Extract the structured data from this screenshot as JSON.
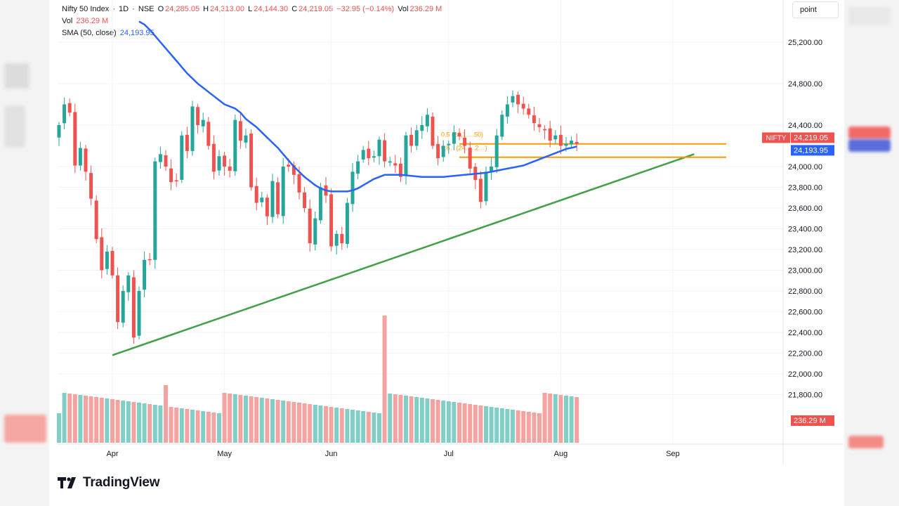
{
  "header": {
    "symbol": "Nifty 50 Index",
    "interval": "1D",
    "exchange": "NSE",
    "open_label": "O",
    "open": "24,285.05",
    "high_label": "H",
    "high": "24,313.00",
    "low_label": "L",
    "low": "24,144.30",
    "close_label": "C",
    "close": "24,219.05",
    "change": "−32.95 (−0.14%)",
    "vol_label": "Vol",
    "vol": "236.29 M",
    "vol_row_label": "Vol",
    "vol_row_value": "236.29 M",
    "sma_label": "SMA (50, close)",
    "sma_value": "24,193.95"
  },
  "toolbar": {
    "point_label": "point"
  },
  "branding": {
    "name": "TradingView"
  },
  "colors": {
    "up": "#26a69a",
    "down": "#ef5350",
    "sma": "#2962ff",
    "trend": "#43a047",
    "fib": "#ff9800",
    "vol_up": "#7fcfc6",
    "vol_down": "#f5a3a0"
  },
  "chart_data": {
    "type": "candlestick",
    "x_labels": [
      "Apr",
      "May",
      "Jun",
      "Jul",
      "Aug",
      "Sep"
    ],
    "x_label_index": [
      10,
      31,
      51,
      73,
      94,
      115
    ],
    "y_ticks": [
      "25,200.00",
      "24,800.00",
      "24,400.00",
      "24,000.00",
      "23,800.00",
      "23,600.00",
      "23,400.00",
      "23,200.00",
      "23,000.00",
      "22,800.00",
      "22,600.00",
      "22,400.00",
      "22,200.00",
      "22,000.00",
      "21,800.00"
    ],
    "y_tick_values": [
      25200,
      24800,
      24400,
      24000,
      23800,
      23600,
      23400,
      23200,
      23000,
      22800,
      22600,
      22400,
      22200,
      22000,
      21800
    ],
    "close": [
      24400,
      24600,
      24520,
      24010,
      24180,
      23950,
      23690,
      23300,
      23000,
      23180,
      22950,
      22500,
      22800,
      22950,
      22350,
      22800,
      23100,
      23100,
      24050,
      24120,
      24000,
      23850,
      23860,
      24300,
      24150,
      24580,
      24400,
      24450,
      24200,
      23950,
      24100,
      24000,
      23960,
      24450,
      24250,
      24300,
      23800,
      23650,
      23700,
      23520,
      23860,
      23540,
      24000,
      24000,
      23920,
      23750,
      23600,
      23260,
      23500,
      23800,
      23720,
      23230,
      23350,
      23260,
      23650,
      23950,
      24050,
      24160,
      24080,
      24100,
      24260,
      24050,
      24050,
      24010,
      23900,
      24300,
      24200,
      24350,
      24400,
      24500,
      24200,
      24080,
      24200,
      24220,
      24330,
      24290,
      24200,
      23980,
      23870,
      23660,
      23950,
      24000,
      24300,
      24500,
      24600,
      24680,
      24600,
      24560,
      24500,
      24420,
      24380,
      24350,
      24250,
      24300,
      24200,
      24220,
      24250,
      24219
    ],
    "sma_50": [
      25400,
      25370,
      25320,
      25260,
      25200,
      25140,
      25080,
      25020,
      24960,
      24900,
      24850,
      24800,
      24760,
      24720,
      24680,
      24640,
      24600,
      24580,
      24560,
      24520,
      24460,
      24420,
      24380,
      24330,
      24280,
      24230,
      24180,
      24120,
      24060,
      24000,
      23950,
      23900,
      23860,
      23820,
      23790,
      23770,
      23760,
      23760,
      23760,
      23760,
      23770,
      23790,
      23820,
      23850,
      23880,
      23900,
      23920,
      23920,
      23920,
      23920,
      23915,
      23910,
      23905,
      23900,
      23900,
      23900,
      23900,
      23900,
      23905,
      23910,
      23915,
      23920,
      23925,
      23930,
      23935,
      23940,
      23950,
      23960,
      23970,
      23980,
      23990,
      24000,
      24010,
      24030,
      24050,
      24070,
      24090,
      24110,
      24130,
      24150,
      24170,
      24180,
      24193.95
    ],
    "volume_unit": "M",
    "last_volume": 236.29,
    "annotations": {
      "price_labels": [
        {
          "symbol": "NIFTY",
          "value": "24,219.05"
        },
        {
          "symbol": "SMA",
          "value": "24,193.95"
        }
      ],
      "volume_label": "236.29 M",
      "fib_labels": [
        "0.5 (24,1….50)",
        "0.6…(24,….2…)"
      ],
      "fib_levels": [
        24219.05,
        24090
      ],
      "trendline": [
        {
          "x_index": 10,
          "price": 22180
        },
        {
          "x_index": 119,
          "price": 24120
        }
      ]
    },
    "grid": true,
    "legend": "top-left"
  }
}
